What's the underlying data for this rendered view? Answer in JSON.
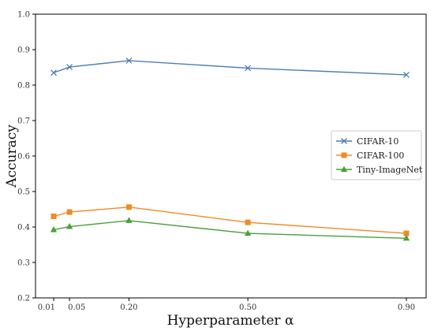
{
  "chart_data": {
    "type": "line",
    "xlabel": "Hyperparameter α",
    "ylabel": "Accuracy",
    "x": [
      0.01,
      0.05,
      0.2,
      0.5,
      0.9
    ],
    "xticks": [
      "0.01",
      "0.05",
      "0.20",
      "0.50",
      "0.90"
    ],
    "yticks": [
      "0.2",
      "0.3",
      "0.4",
      "0.5",
      "0.6",
      "0.7",
      "0.8",
      "0.9",
      "1.0"
    ],
    "ylim": [
      0.2,
      1.0
    ],
    "grid": false,
    "legend_position": "center-right",
    "series": [
      {
        "name": "CIFAR-10",
        "color": "#4c7fb0",
        "marker": "x",
        "values": [
          0.835,
          0.851,
          0.869,
          0.848,
          0.829
        ]
      },
      {
        "name": "CIFAR-100",
        "color": "#f08a24",
        "marker": "square",
        "values": [
          0.43,
          0.442,
          0.456,
          0.413,
          0.382
        ]
      },
      {
        "name": "Tiny-ImageNet",
        "color": "#4aa03a",
        "marker": "triangle",
        "values": [
          0.392,
          0.401,
          0.418,
          0.382,
          0.368
        ]
      }
    ]
  }
}
